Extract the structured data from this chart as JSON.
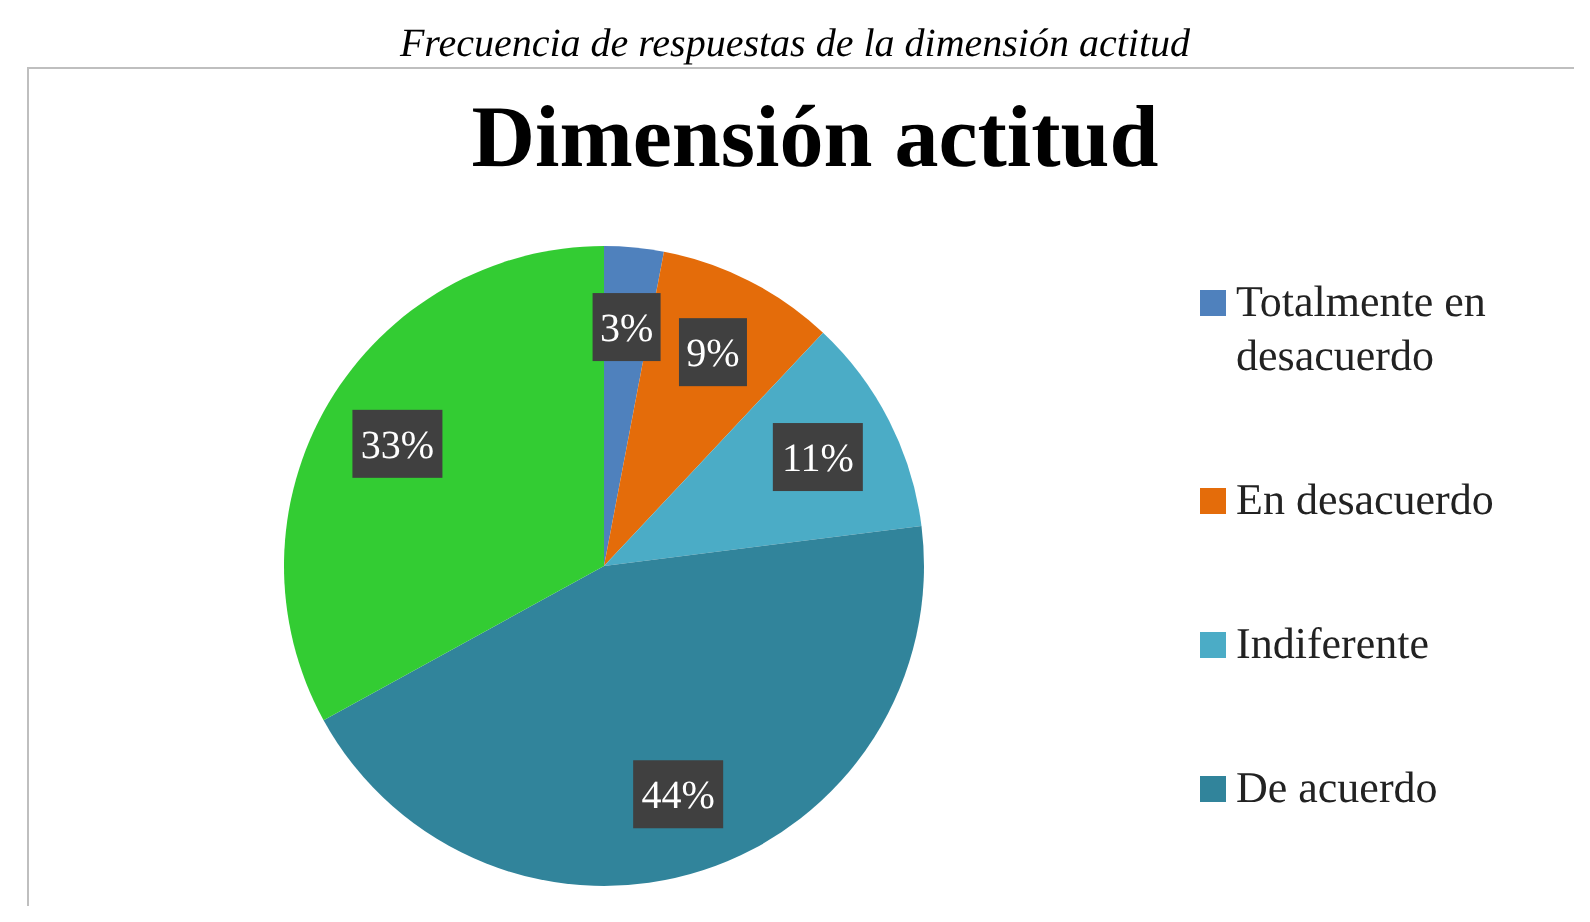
{
  "chart_data": {
    "type": "pie",
    "title": "Dimensión actitud",
    "annotations": [
      "Frecuencia de respuestas de la dimensión actitud"
    ],
    "categories": [
      "Totalmente en desacuerdo",
      "En desacuerdo",
      "Indiferente",
      "De acuerdo",
      null
    ],
    "values": [
      3,
      9,
      11,
      44,
      33
    ],
    "value_labels": [
      "3%",
      "9%",
      "11%",
      "44%",
      "33%"
    ],
    "colors": [
      "#4f81bd",
      "#e46c0a",
      "#4bacc6",
      "#31849b",
      "#33cc33"
    ],
    "legend": "right"
  }
}
